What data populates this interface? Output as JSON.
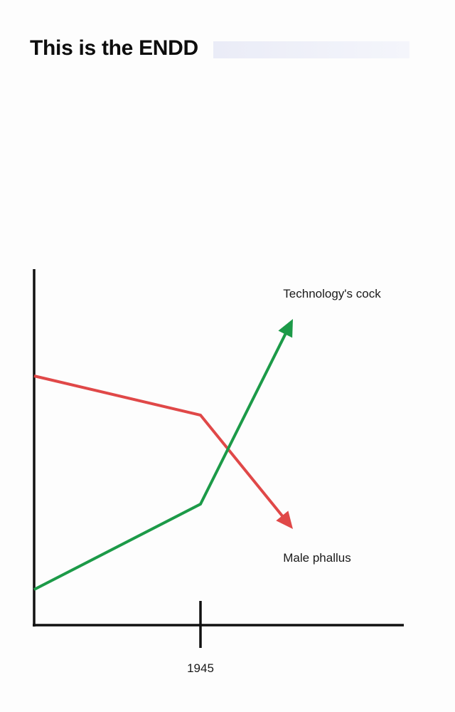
{
  "page": {
    "title": "This is the ENDD"
  },
  "chart_data": {
    "type": "line",
    "title": "This is the ENDD",
    "xlabel": "",
    "ylabel": "",
    "x_ticks": [
      1945
    ],
    "xlim": [
      1900,
      2000
    ],
    "ylim": [
      0,
      100
    ],
    "grid": false,
    "legend": "none",
    "series": [
      {
        "name": "Male phallus",
        "color": "#e04848",
        "points": [
          [
            1900,
            70
          ],
          [
            1945,
            59
          ],
          [
            1970,
            27
          ]
        ]
      },
      {
        "name": "Technology's cock",
        "color": "#1c9a48",
        "points": [
          [
            1900,
            10
          ],
          [
            1945,
            34
          ],
          [
            1970,
            86
          ]
        ]
      }
    ]
  }
}
